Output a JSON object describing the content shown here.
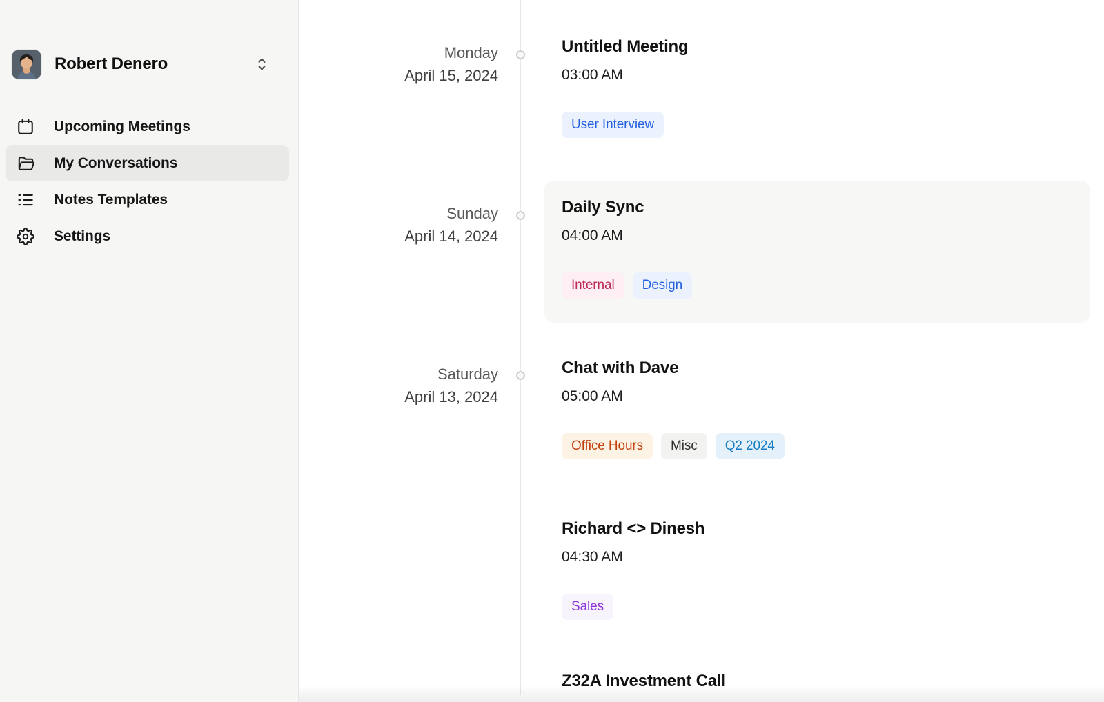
{
  "sidebar": {
    "user": {
      "name": "Robert Denero"
    },
    "items": [
      {
        "label": "Upcoming Meetings",
        "icon": "calendar-icon",
        "active": false
      },
      {
        "label": "My Conversations",
        "icon": "folder-icon",
        "active": true
      },
      {
        "label": "Notes Templates",
        "icon": "list-icon",
        "active": false
      },
      {
        "label": "Settings",
        "icon": "gear-icon",
        "active": false
      }
    ]
  },
  "timeline": {
    "groups": [
      {
        "day": "Monday",
        "date": "April 15, 2024",
        "meetings": [
          {
            "title": "Untitled Meeting",
            "time": "03:00 AM",
            "highlighted": false,
            "tags": [
              {
                "label": "User Interview",
                "color": "blue"
              }
            ]
          }
        ]
      },
      {
        "day": "Sunday",
        "date": "April 14, 2024",
        "meetings": [
          {
            "title": "Daily Sync",
            "time": "04:00 AM",
            "highlighted": true,
            "tags": [
              {
                "label": "Internal",
                "color": "pink"
              },
              {
                "label": "Design",
                "color": "blue"
              }
            ]
          }
        ]
      },
      {
        "day": "Saturday",
        "date": "April 13, 2024",
        "meetings": [
          {
            "title": "Chat with Dave",
            "time": "05:00 AM",
            "highlighted": false,
            "tags": [
              {
                "label": "Office Hours",
                "color": "orange"
              },
              {
                "label": "Misc",
                "color": "gray"
              },
              {
                "label": "Q2 2024",
                "color": "cyan"
              }
            ]
          },
          {
            "title": "Richard <> Dinesh",
            "time": "04:30 AM",
            "highlighted": false,
            "tags": [
              {
                "label": "Sales",
                "color": "purple"
              }
            ]
          },
          {
            "title": "Z32A Investment Call",
            "time": "",
            "highlighted": false,
            "tags": []
          }
        ]
      }
    ]
  },
  "colors": {
    "tag_palette": {
      "blue": {
        "bg": "#ecf2fd",
        "text": "#2461e0"
      },
      "pink": {
        "bg": "#fdeff4",
        "text": "#bd2856"
      },
      "orange": {
        "bg": "#fcf3e5",
        "text": "#c2410c"
      },
      "gray": {
        "bg": "#f2f2f0",
        "text": "#323232"
      },
      "cyan": {
        "bg": "#e4f1fa",
        "text": "#177cc2"
      },
      "purple": {
        "bg": "#f8f4fd",
        "text": "#8c33d9"
      }
    }
  }
}
